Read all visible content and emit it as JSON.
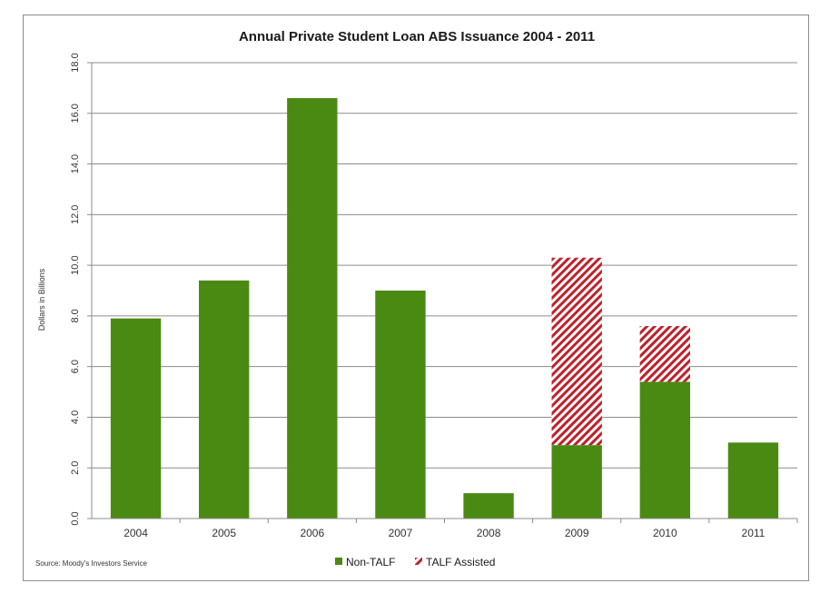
{
  "chart_data": {
    "type": "bar",
    "stacked": true,
    "title": "Annual Private Student Loan ABS Issuance 2004 - 2011",
    "ylabel": "Dollars in Billions",
    "xlabel": "",
    "source": "Source: Moody's Investors Service",
    "categories": [
      "2004",
      "2005",
      "2006",
      "2007",
      "2008",
      "2009",
      "2010",
      "2011"
    ],
    "series": [
      {
        "name": "Non-TALF",
        "color": "#4a8a12",
        "pattern": "solid",
        "values": [
          7.9,
          9.4,
          16.6,
          9.0,
          1.0,
          2.9,
          5.4,
          3.0
        ]
      },
      {
        "name": "TALF Assisted",
        "color": "#c0202a",
        "pattern": "diagonal-hatch",
        "values": [
          0,
          0,
          0,
          0,
          0,
          7.4,
          2.2,
          0
        ]
      }
    ],
    "ylim": [
      0,
      18
    ],
    "yticks": [
      "0.0",
      "2.0",
      "4.0",
      "6.0",
      "8.0",
      "10.0",
      "12.0",
      "14.0",
      "16.0",
      "18.0"
    ],
    "grid": true,
    "legend_position": "bottom-center"
  }
}
